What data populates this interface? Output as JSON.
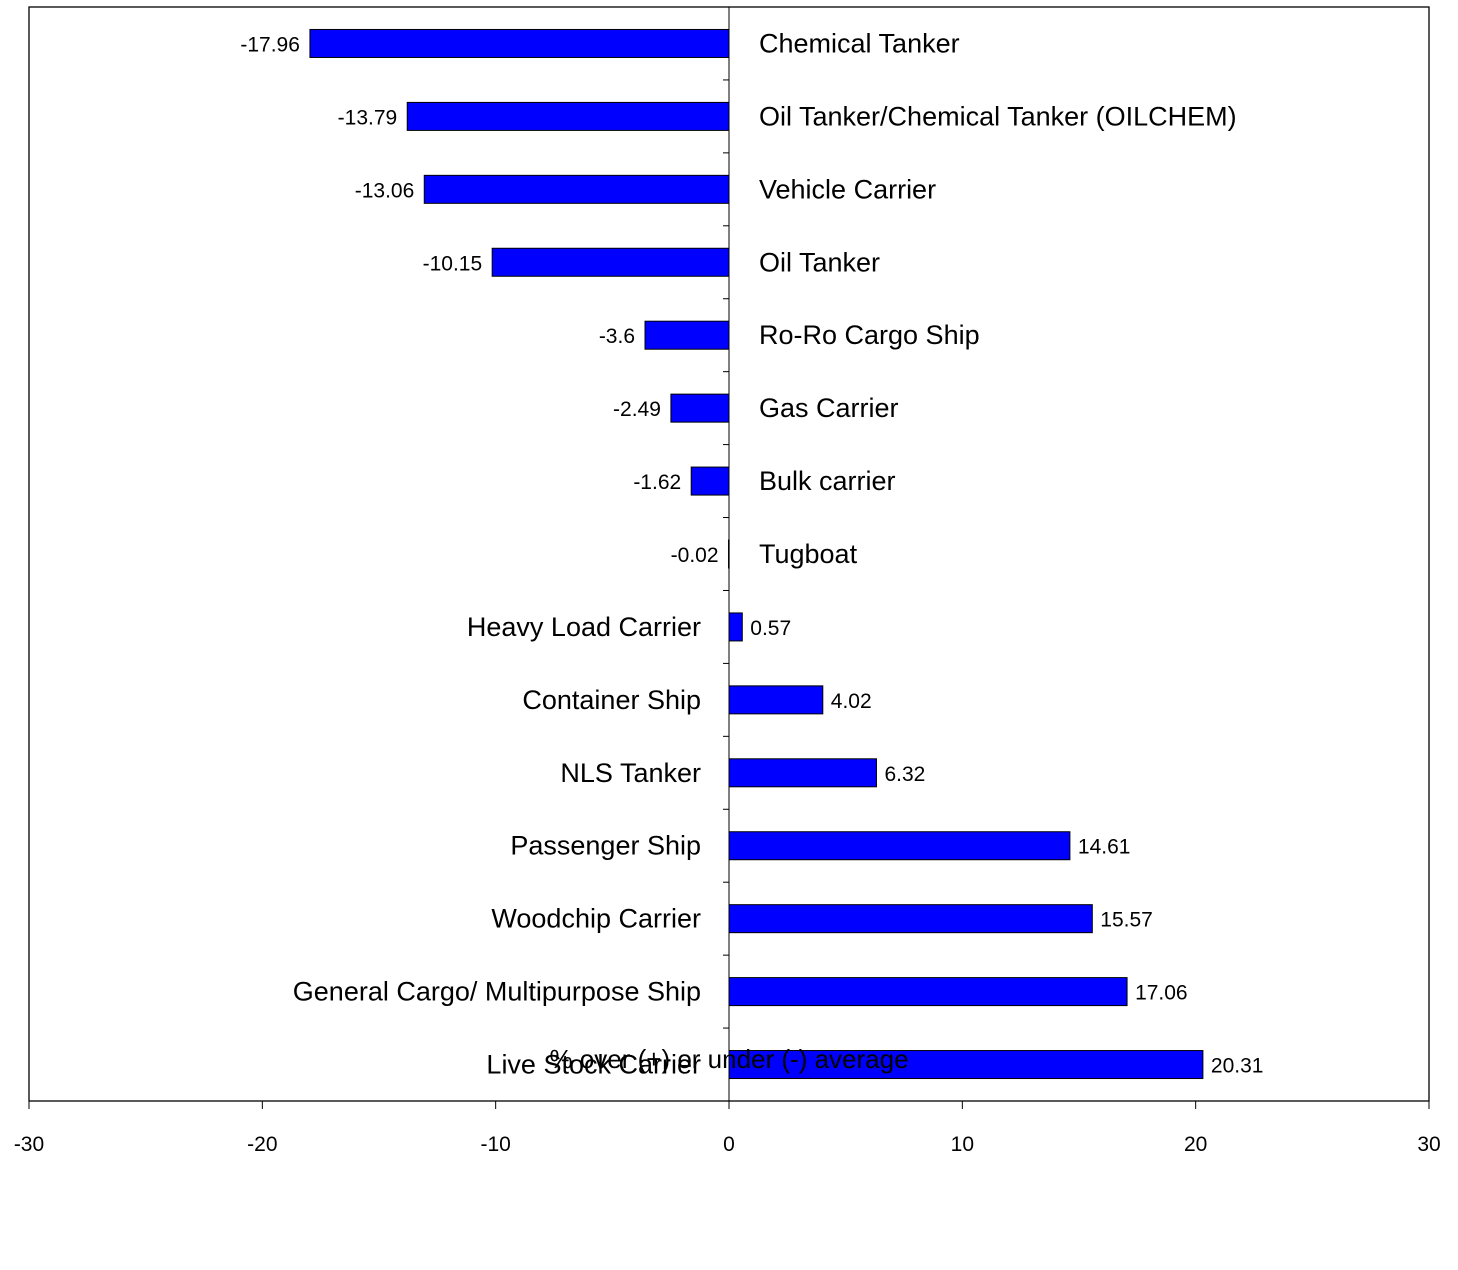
{
  "chart_data": {
    "type": "bar",
    "orientation": "horizontal",
    "categories": [
      "Chemical Tanker",
      "Oil Tanker/Chemical Tanker (OILCHEM)",
      "Vehicle Carrier",
      "Oil Tanker",
      "Ro-Ro Cargo Ship",
      "Gas Carrier",
      "Bulk carrier",
      "Tugboat",
      "Heavy Load Carrier",
      "Container Ship",
      "NLS Tanker",
      "Passenger Ship",
      "Woodchip Carrier",
      "General Cargo/ Multipurpose Ship",
      "Live Stock Carrier"
    ],
    "values": [
      -17.96,
      -13.79,
      -13.06,
      -10.15,
      -3.6,
      -2.49,
      -1.62,
      -0.02,
      0.57,
      4.02,
      6.32,
      14.61,
      15.57,
      17.06,
      20.31
    ],
    "data_labels": [
      "-17.96",
      "-13.79",
      "-13.06",
      "-10.15",
      "-3.6",
      "-2.49",
      "-1.62",
      "-0.02",
      "0.57",
      "4.02",
      "6.32",
      "14.61",
      "15.57",
      "17.06",
      "20.31"
    ],
    "xlabel": "% over (+) or under (-) average",
    "xlim": [
      -30,
      30
    ],
    "xticks": [
      -30,
      -20,
      -10,
      0,
      10,
      20,
      30
    ],
    "xtick_labels": [
      "-30",
      "-20",
      "-10",
      "0",
      "10",
      "20",
      "30"
    ],
    "bar_color": "#0000FF",
    "grid": false,
    "legend": "none"
  }
}
